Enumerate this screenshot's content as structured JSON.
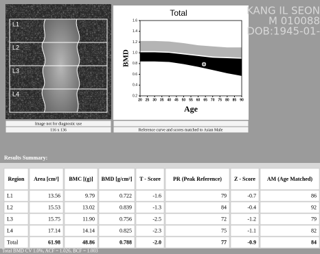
{
  "patient": {
    "lines": [
      "KANG IL SEON",
      "M 010088",
      "DOB:1945-01-"
    ]
  },
  "image": {
    "labels": [
      "L1",
      "L2",
      "L3",
      "L4"
    ],
    "caption": "Image not for diagnostic use",
    "size": "116 x 136"
  },
  "chart_data": {
    "type": "reference",
    "title": "Total",
    "y_label": "BMD",
    "x_label": "Age",
    "caption": "Reference curve and scores matched to Asian Male",
    "xlim": [
      20,
      90
    ],
    "ylim": [
      0.2,
      1.6
    ],
    "xticks": [
      20,
      25,
      30,
      35,
      40,
      45,
      50,
      55,
      60,
      65,
      70,
      75,
      80,
      85,
      90
    ],
    "yticks": [
      0.2,
      0.4,
      0.6,
      0.8,
      {
        "value": 1,
        "label": "1.0"
      },
      1.2,
      1.4,
      1.6
    ],
    "x": [
      20,
      30,
      40,
      50,
      60,
      70,
      80,
      90
    ],
    "bands": [
      {
        "color": "#b4b4b4",
        "upper": [
          1.22,
          1.22,
          1.21,
          1.18,
          1.14,
          1.12,
          1.1,
          1.1
        ],
        "lower": [
          1.03,
          1.03,
          1.02,
          0.99,
          0.96,
          0.93,
          0.92,
          0.91
        ]
      },
      {
        "color": "#000000",
        "upper": [
          1.01,
          1.01,
          1.0,
          0.97,
          0.94,
          0.91,
          0.9,
          0.89
        ],
        "lower": [
          0.84,
          0.84,
          0.83,
          0.79,
          0.74,
          0.68,
          0.62,
          0.57
        ]
      }
    ],
    "point": {
      "x": 64,
      "y": 0.788
    }
  },
  "results": {
    "title": "Results Summary:",
    "headers": [
      "Region",
      "Area [cm²]",
      "BMC [(g)]",
      "BMD [g/cm²]",
      "T - Score",
      "PR (Peak Reference)",
      "Z - Score",
      "AM (Age Matched)"
    ],
    "rows": [
      [
        "L1",
        "13.56",
        "9.79",
        "0.722",
        "-1.6",
        "79",
        "-0.7",
        "86"
      ],
      [
        "L2",
        "15.53",
        "13.02",
        "0.839",
        "-1.3",
        "84",
        "-0.4",
        "92"
      ],
      [
        "L3",
        "15.75",
        "11.90",
        "0.756",
        "-2.5",
        "72",
        "-1.2",
        "79"
      ],
      [
        "L4",
        "17.14",
        "14.14",
        "0.825",
        "-2.3",
        "75",
        "-1.1",
        "82"
      ],
      [
        "Total",
        "61.98",
        "48.86",
        "0.788",
        "-2.0",
        "77",
        "-0.9",
        "84"
      ]
    ],
    "footer": "Total BMD CV 1.0%, ACF = 1.026, BCF = 1.003"
  }
}
